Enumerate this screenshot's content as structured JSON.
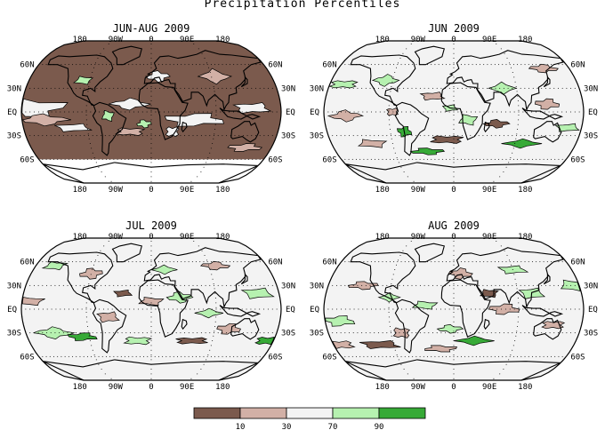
{
  "figure": {
    "title": "Precipitation Percentiles"
  },
  "colors": {
    "below10": "#7b5a4d",
    "p10_30": "#d2b0a6",
    "p30_70": "#f3f3f3",
    "p70_90": "#b6f1b0",
    "above90": "#37aa37",
    "outline": "#000000"
  },
  "panels": [
    {
      "title": "JUN-AUG 2009",
      "lon_ticks_top": [
        "180",
        "90W",
        "0",
        "90E",
        "180"
      ],
      "lon_ticks_bottom": [
        "180",
        "90W",
        "0",
        "90E",
        "180"
      ],
      "lat_ticks": [
        "60N",
        "30N",
        "EQ",
        "30S",
        "60S"
      ],
      "dominant_category": "below10",
      "no_data_south_of": "60S"
    },
    {
      "title": "JUN 2009",
      "lon_ticks_top": [
        "180",
        "90W",
        "0",
        "90E",
        "180"
      ],
      "lon_ticks_bottom": [
        "180",
        "90W",
        "0",
        "90E",
        "180"
      ],
      "lat_ticks": [
        "60N",
        "30N",
        "EQ",
        "30S",
        "60S"
      ],
      "dominant_category": "p30_70"
    },
    {
      "title": "JUL 2009",
      "lon_ticks_top": [
        "180",
        "90W",
        "0",
        "90E",
        "180"
      ],
      "lon_ticks_bottom": [
        "180",
        "90W",
        "0",
        "90E",
        "180"
      ],
      "lat_ticks": [
        "60N",
        "30N",
        "EQ",
        "30S",
        "60S"
      ],
      "dominant_category": "p30_70"
    },
    {
      "title": "AUG 2009",
      "lon_ticks_top": [
        "180",
        "90W",
        "0",
        "90E",
        "180"
      ],
      "lon_ticks_bottom": [
        "180",
        "90W",
        "0",
        "90E",
        "180"
      ],
      "lat_ticks": [
        "60N",
        "30N",
        "EQ",
        "30S",
        "60S"
      ],
      "dominant_category": "p30_70"
    }
  ],
  "legend": {
    "categories": [
      "below10",
      "p10_30",
      "p30_70",
      "p70_90",
      "above90"
    ],
    "labels": [
      "10",
      "30",
      "70",
      "90"
    ]
  }
}
